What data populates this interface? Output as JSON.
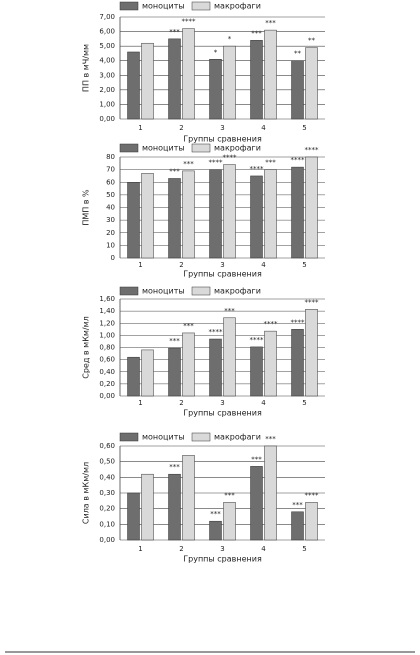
{
  "chart_data": [
    {
      "type": "bar",
      "y_label": "ПП в мЧ/мм",
      "x_label": "Группы сравнения",
      "categories": [
        "1",
        "2",
        "3",
        "4",
        "5"
      ],
      "series": [
        {
          "name": "моноциты",
          "color": "#6e6e6e",
          "values": [
            4.6,
            5.5,
            4.1,
            5.4,
            4.0
          ],
          "annotations": [
            null,
            "***",
            "*",
            "***",
            "**"
          ]
        },
        {
          "name": "макрофаги",
          "color": "#d9d9d9",
          "values": [
            5.2,
            6.2,
            5.0,
            6.1,
            4.9
          ],
          "annotations": [
            null,
            "****",
            "*",
            "***",
            "**"
          ]
        }
      ],
      "ylim": [
        0,
        7
      ],
      "yticks": [
        {
          "value": 0,
          "label": "0,00"
        },
        {
          "value": 1,
          "label": "1,00"
        },
        {
          "value": 2,
          "label": "2,00"
        },
        {
          "value": 3,
          "label": "3,00"
        },
        {
          "value": 4,
          "label": "4,00"
        },
        {
          "value": 5,
          "label": "5,00"
        },
        {
          "value": 6,
          "label": "6,00"
        },
        {
          "value": 7,
          "label": "7,00"
        }
      ],
      "grid": true
    },
    {
      "type": "bar",
      "y_label": "ПМП в %",
      "x_label": "Группы сравнения",
      "categories": [
        "1",
        "2",
        "3",
        "4",
        "5"
      ],
      "series": [
        {
          "name": "моноциты",
          "color": "#6e6e6e",
          "values": [
            60,
            63,
            70,
            65,
            72
          ],
          "annotations": [
            null,
            "***",
            "****",
            "****",
            "****"
          ]
        },
        {
          "name": "макрофаги",
          "color": "#d9d9d9",
          "values": [
            67,
            69,
            74,
            70,
            80
          ],
          "annotations": [
            null,
            "***",
            "****",
            "***",
            "****"
          ]
        }
      ],
      "ylim": [
        0,
        80
      ],
      "yticks": [
        0,
        10,
        20,
        30,
        40,
        50,
        60,
        70,
        80
      ],
      "grid": true
    },
    {
      "type": "bar",
      "y_label": "Сред в мКм/мл",
      "x_label": "Группы сравнения",
      "categories": [
        "1",
        "2",
        "3",
        "4",
        "5"
      ],
      "series": [
        {
          "name": "моноциты",
          "color": "#6e6e6e",
          "values": [
            0.64,
            0.79,
            0.94,
            0.81,
            1.1
          ],
          "annotations": [
            null,
            "***",
            "****",
            "****",
            "****"
          ]
        },
        {
          "name": "макрофаги",
          "color": "#d9d9d9",
          "values": [
            0.76,
            1.04,
            1.29,
            1.07,
            1.43
          ],
          "annotations": [
            null,
            "***",
            "***",
            "****",
            "****"
          ]
        }
      ],
      "ylim": [
        0,
        1.6
      ],
      "yticks": [
        {
          "value": 0,
          "label": "0,00"
        },
        {
          "value": 0.2,
          "label": "0,20"
        },
        {
          "value": 0.4,
          "label": "0,40"
        },
        {
          "value": 0.6,
          "label": "0,60"
        },
        {
          "value": 0.8,
          "label": "0,80"
        },
        {
          "value": 1,
          "label": "1,00"
        },
        {
          "value": 1.2,
          "label": "1,20"
        },
        {
          "value": 1.4,
          "label": "1,40"
        },
        {
          "value": 1.6,
          "label": "1,60"
        }
      ],
      "grid": true
    },
    {
      "type": "bar",
      "y_label": "Сила в мКм/мл",
      "x_label": "Группы сравнения",
      "categories": [
        "1",
        "2",
        "3",
        "4",
        "5"
      ],
      "series": [
        {
          "name": "моноциты",
          "color": "#6e6e6e",
          "values": [
            0.3,
            0.42,
            0.12,
            0.47,
            0.18
          ],
          "annotations": [
            null,
            "***",
            "***",
            "***",
            "***"
          ]
        },
        {
          "name": "макрофаги",
          "color": "#d9d9d9",
          "values": [
            0.42,
            0.54,
            0.24,
            0.6,
            0.24
          ],
          "annotations": [
            null,
            null,
            "***",
            "***",
            "****"
          ]
        }
      ],
      "ylim": [
        0,
        0.6
      ],
      "yticks": [
        {
          "value": 0,
          "label": "0,00"
        },
        {
          "value": 0.1,
          "label": "0,10"
        },
        {
          "value": 0.2,
          "label": "0,20"
        },
        {
          "value": 0.3,
          "label": "0,30"
        },
        {
          "value": 0.4,
          "label": "0,40"
        },
        {
          "value": 0.5,
          "label": "0,50"
        },
        {
          "value": 0.6,
          "label": "0,60"
        }
      ],
      "grid": true
    }
  ]
}
